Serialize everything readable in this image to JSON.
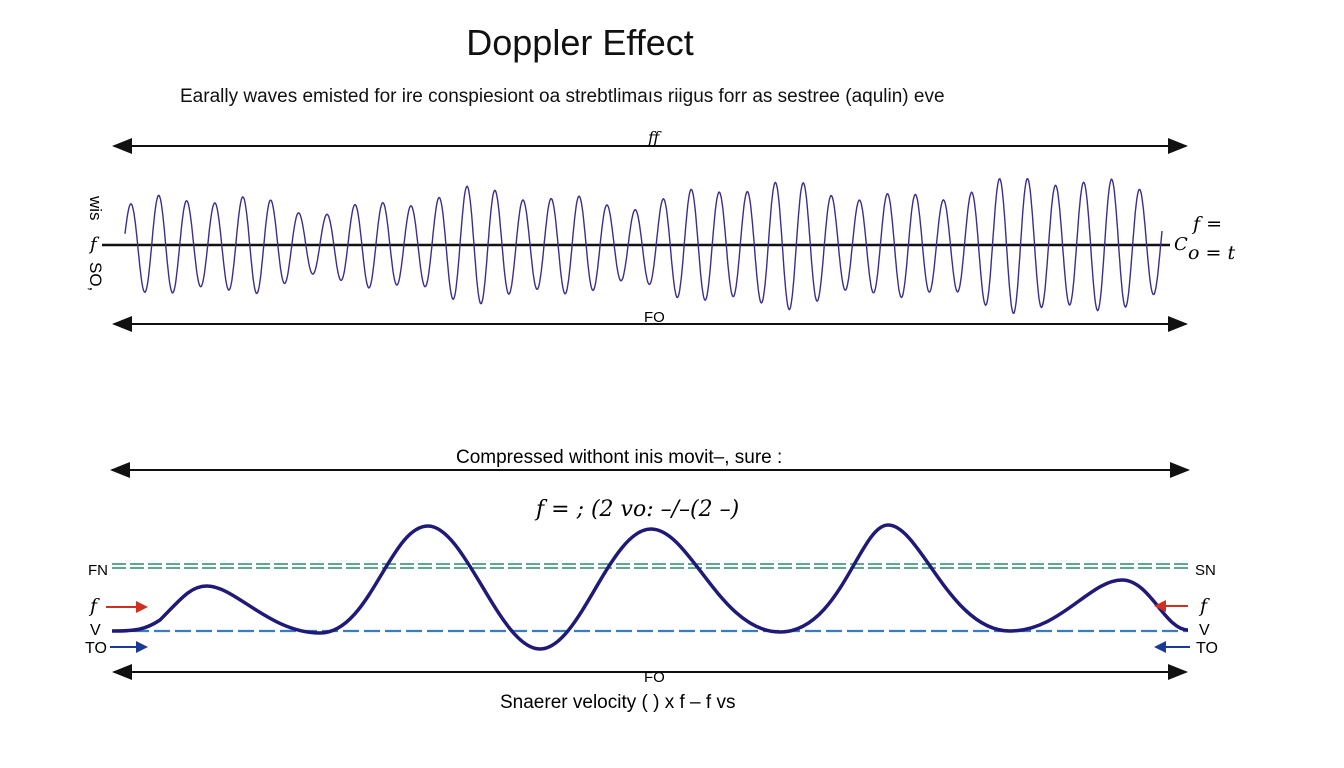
{
  "title": "Doppler Effect",
  "subtitle": "Earally waves emisted for ire conspiesiont oa strebtlimaıs riigus forr as sestree (aqulin) eve",
  "top_panel": {
    "top_arrow_label": "ff",
    "bottom_arrow_label": "FO",
    "left_labels": {
      "rotated_top": "wis",
      "axis": "f",
      "rotated_bottom": "SO,"
    },
    "right_labels": {
      "c": "C",
      "line1": "f =",
      "line2": "o = t"
    },
    "wave_color": "#3a2f8a"
  },
  "bottom_panel": {
    "heading": "Compressed withont inis movit–, sure :",
    "formula": "f = ; (2 vo: –/–(2 –)",
    "footer_arrow_label": "FO",
    "caption": "Snaerer velocity ( ) x f – f vs",
    "left_labels": {
      "fn": "FN",
      "f": "f",
      "v": "V",
      "to": "TO"
    },
    "right_labels": {
      "sn": "SN",
      "f": "f",
      "v": "V",
      "to": "TO"
    },
    "colors": {
      "wave": "#1f1a78",
      "fn_line": "#2a8a6a",
      "v_line": "#3a7cc0",
      "f_arrow": "#d03020",
      "to_arrow": "#1a3a9a"
    }
  }
}
